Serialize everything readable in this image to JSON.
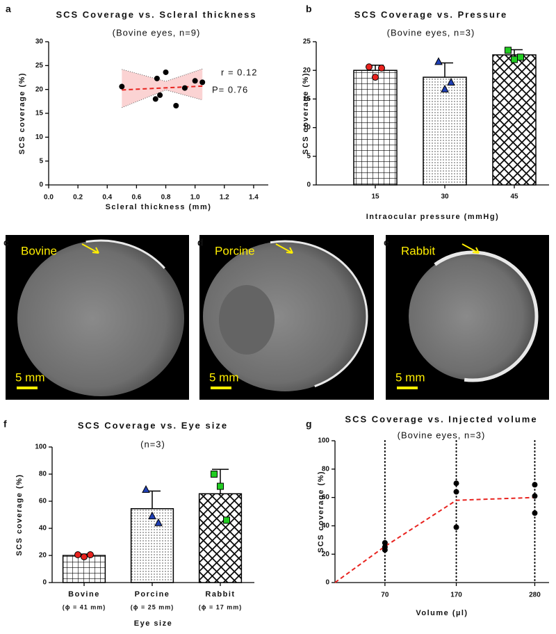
{
  "chart_data": [
    {
      "type": "scatter",
      "panel": "a",
      "title": "SCS Coverage vs. Scleral thickness",
      "subtitle": "(Bovine eyes, n=9)",
      "x_label": "Scleral thickness (mm)",
      "y_label": "SCS coverage (%)",
      "x": [
        0.5,
        0.73,
        0.74,
        0.76,
        0.8,
        0.87,
        0.93,
        1.0,
        1.05
      ],
      "values": [
        20.6,
        18.0,
        22.3,
        18.8,
        23.6,
        16.6,
        20.3,
        21.8,
        21.5
      ],
      "color": "#000000",
      "fit": {
        "x": [
          0.5,
          1.05
        ],
        "values": [
          19.9,
          20.7
        ],
        "color": "#e8231f"
      },
      "band": {
        "x": [
          0.5,
          0.8,
          1.05
        ],
        "lower": [
          16.2,
          19.9,
          17.8
        ],
        "upper": [
          24.2,
          21.7,
          24.3
        ],
        "color": "#fbd3d3"
      },
      "annotations": [
        "r = 0.12",
        "P= 0.76"
      ],
      "xlim": [
        0,
        1.5
      ],
      "xticks": [
        {
          "value": 0,
          "label": "0.0"
        },
        0.2,
        0.4,
        0.6,
        0.8,
        {
          "value": 1,
          "label": "1.0"
        },
        1.2,
        1.4
      ],
      "ylim": [
        0,
        30
      ],
      "yticks": [
        0,
        5,
        10,
        15,
        20,
        25,
        30
      ]
    },
    {
      "type": "bar",
      "panel": "b",
      "title": "SCS Coverage vs. Pressure",
      "subtitle": "(Bovine eyes, n=3)",
      "x_label": "Intraocular pressure (mmHg)",
      "y_label": "SCS coverage (%)",
      "categories": [
        "15",
        "30",
        "45"
      ],
      "values": [
        20,
        18.8,
        22.7
      ],
      "errors": [
        0.9,
        2.5,
        0.9
      ],
      "patterns": [
        "grid",
        "dots",
        "diamond"
      ],
      "points": [
        {
          "marker": "circle",
          "color": "#e8231f",
          "values": [
            20.6,
            18.8,
            20.4
          ]
        },
        {
          "marker": "triangle",
          "color": "#1f3fb5",
          "values": [
            21.5,
            16.7,
            17.9
          ]
        },
        {
          "marker": "square",
          "color": "#22cc22",
          "values": [
            23.5,
            21.9,
            22.3
          ]
        }
      ],
      "ylim": [
        0,
        25
      ],
      "yticks": [
        0,
        5,
        10,
        15,
        20,
        25
      ]
    },
    {
      "type": "bar",
      "panel": "f",
      "title": "SCS Coverage vs. Eye size",
      "subtitle": "(n=3)",
      "x_label": "Eye size",
      "y_label": "SCS coverage (%)",
      "categories": [
        "Bovine",
        "Porcine",
        "Rabbit"
      ],
      "category_notes": [
        "(ϕ = 41 mm)",
        "(ϕ = 25 mm)",
        "(ϕ = 17 mm)"
      ],
      "values": [
        20,
        54.5,
        65.5
      ],
      "errors": [
        1,
        13,
        18
      ],
      "patterns": [
        "grid",
        "dots",
        "diamond"
      ],
      "points": [
        {
          "marker": "circle",
          "color": "#e8231f",
          "values": [
            20.5,
            19,
            20.5
          ]
        },
        {
          "marker": "triangle",
          "color": "#1f3fb5",
          "values": [
            68.5,
            49,
            44
          ]
        },
        {
          "marker": "square",
          "color": "#22cc22",
          "values": [
            80,
            71,
            46
          ]
        }
      ],
      "ylim": [
        0,
        100
      ],
      "yticks": [
        0,
        20,
        40,
        60,
        80,
        100
      ]
    },
    {
      "type": "scatter",
      "panel": "g",
      "title": "SCS Coverage vs. Injected volume",
      "subtitle": "(Bovine eyes, n=3)",
      "x_label": "Volume (µl)",
      "y_label": "SCS coverage (%)",
      "x": [
        70,
        70,
        70,
        170,
        170,
        170,
        280,
        280,
        280
      ],
      "values": [
        28,
        25,
        23,
        70,
        64,
        39,
        69,
        61,
        49
      ],
      "color": "#000000",
      "fit": {
        "x": [
          0,
          70,
          170,
          280
        ],
        "values": [
          0,
          25.5,
          58,
          60
        ],
        "color": "#e8231f"
      },
      "grid_x": true,
      "xlim": [
        0,
        300
      ],
      "xticks": [
        70,
        170,
        280
      ],
      "ylim": [
        0,
        100
      ],
      "yticks": [
        0,
        20,
        40,
        60,
        80,
        100
      ]
    }
  ],
  "images": [
    {
      "panel": "c",
      "label": "Bovine",
      "scale_bar": "5 mm"
    },
    {
      "panel": "d",
      "label": "Porcine",
      "scale_bar": "5 mm"
    },
    {
      "panel": "e",
      "label": "Rabbit",
      "scale_bar": "5 mm"
    }
  ]
}
